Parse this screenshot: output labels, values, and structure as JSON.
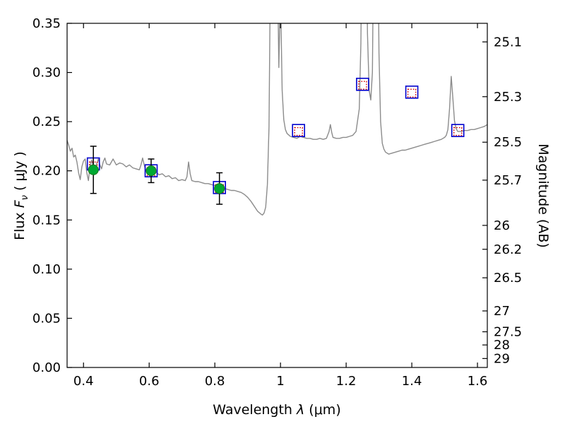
{
  "figure": {
    "background": "#ffffff",
    "axis_color": "#000000",
    "tick_label_size": 18
  },
  "chart_data": {
    "type": "line",
    "title": "",
    "grid": false,
    "legend": null,
    "xlim": [
      0.35,
      1.63
    ],
    "ylim": [
      0.0,
      0.35
    ],
    "labels": {
      "xlabel": {
        "prefix": "Wavelength  ",
        "math": "λ",
        "suffix": " (μm)"
      },
      "ylabel": {
        "prefix": "Flux  ",
        "math": "F",
        "sub": "ν",
        "suffix": "  ( μJy )"
      },
      "y2label": "Magnitude (AB)"
    },
    "x_ticks": [
      {
        "v": 0.4,
        "label": "0.4"
      },
      {
        "v": 0.6,
        "label": "0.6"
      },
      {
        "v": 0.8,
        "label": "0.8"
      },
      {
        "v": 1.0,
        "label": "1"
      },
      {
        "v": 1.2,
        "label": "1.2"
      },
      {
        "v": 1.4,
        "label": "1.4"
      },
      {
        "v": 1.6,
        "label": "1.6"
      }
    ],
    "y_ticks": [
      {
        "v": 0.0,
        "label": "0.00"
      },
      {
        "v": 0.05,
        "label": "0.05"
      },
      {
        "v": 0.1,
        "label": "0.10"
      },
      {
        "v": 0.15,
        "label": "0.15"
      },
      {
        "v": 0.2,
        "label": "0.20"
      },
      {
        "v": 0.25,
        "label": "0.25"
      },
      {
        "v": 0.3,
        "label": "0.30"
      },
      {
        "v": 0.35,
        "label": "0.35"
      }
    ],
    "y2_ticks": [
      {
        "label": "25.1",
        "flux": 0.3311
      },
      {
        "label": "25.3",
        "flux": 0.2754
      },
      {
        "label": "25.5",
        "flux": 0.2291
      },
      {
        "label": "25.7",
        "flux": 0.1905
      },
      {
        "label": "26",
        "flux": 0.1445
      },
      {
        "label": "26.2",
        "flux": 0.1202
      },
      {
        "label": "26.5",
        "flux": 0.0912
      },
      {
        "label": "27",
        "flux": 0.0575
      },
      {
        "label": "27.5",
        "flux": 0.0363
      },
      {
        "label": "28",
        "flux": 0.0229
      },
      {
        "label": "29",
        "flux": 0.0091
      }
    ],
    "series": [
      {
        "name": "model-spectrum",
        "kind": "line",
        "color": "#8c8c8c",
        "width": 1.4,
        "points": [
          [
            0.35,
            0.231
          ],
          [
            0.355,
            0.226
          ],
          [
            0.36,
            0.22
          ],
          [
            0.365,
            0.223
          ],
          [
            0.37,
            0.214
          ],
          [
            0.375,
            0.216
          ],
          [
            0.38,
            0.209
          ],
          [
            0.385,
            0.198
          ],
          [
            0.39,
            0.191
          ],
          [
            0.395,
            0.204
          ],
          [
            0.4,
            0.21
          ],
          [
            0.405,
            0.212
          ],
          [
            0.41,
            0.198
          ],
          [
            0.415,
            0.19
          ],
          [
            0.42,
            0.205
          ],
          [
            0.425,
            0.211
          ],
          [
            0.43,
            0.203
          ],
          [
            0.435,
            0.198
          ],
          [
            0.44,
            0.207
          ],
          [
            0.445,
            0.212
          ],
          [
            0.45,
            0.206
          ],
          [
            0.455,
            0.202
          ],
          [
            0.46,
            0.209
          ],
          [
            0.465,
            0.213
          ],
          [
            0.47,
            0.207
          ],
          [
            0.48,
            0.206
          ],
          [
            0.49,
            0.212
          ],
          [
            0.5,
            0.206
          ],
          [
            0.51,
            0.208
          ],
          [
            0.52,
            0.207
          ],
          [
            0.53,
            0.204
          ],
          [
            0.54,
            0.206
          ],
          [
            0.55,
            0.203
          ],
          [
            0.56,
            0.202
          ],
          [
            0.57,
            0.201
          ],
          [
            0.575,
            0.206
          ],
          [
            0.58,
            0.213
          ],
          [
            0.585,
            0.206
          ],
          [
            0.59,
            0.2
          ],
          [
            0.6,
            0.202
          ],
          [
            0.61,
            0.198
          ],
          [
            0.62,
            0.199
          ],
          [
            0.63,
            0.196
          ],
          [
            0.64,
            0.197
          ],
          [
            0.65,
            0.194
          ],
          [
            0.66,
            0.195
          ],
          [
            0.67,
            0.192
          ],
          [
            0.68,
            0.193
          ],
          [
            0.69,
            0.19
          ],
          [
            0.7,
            0.191
          ],
          [
            0.71,
            0.19
          ],
          [
            0.715,
            0.194
          ],
          [
            0.72,
            0.209
          ],
          [
            0.725,
            0.197
          ],
          [
            0.73,
            0.19
          ],
          [
            0.74,
            0.189
          ],
          [
            0.75,
            0.189
          ],
          [
            0.76,
            0.188
          ],
          [
            0.77,
            0.187
          ],
          [
            0.78,
            0.187
          ],
          [
            0.79,
            0.186
          ],
          [
            0.8,
            0.185
          ],
          [
            0.81,
            0.184
          ],
          [
            0.82,
            0.183
          ],
          [
            0.83,
            0.182
          ],
          [
            0.84,
            0.181
          ],
          [
            0.85,
            0.18
          ],
          [
            0.86,
            0.18
          ],
          [
            0.87,
            0.179
          ],
          [
            0.88,
            0.178
          ],
          [
            0.89,
            0.176
          ],
          [
            0.9,
            0.173
          ],
          [
            0.91,
            0.169
          ],
          [
            0.92,
            0.164
          ],
          [
            0.93,
            0.159
          ],
          [
            0.94,
            0.156
          ],
          [
            0.945,
            0.155
          ],
          [
            0.95,
            0.157
          ],
          [
            0.955,
            0.163
          ],
          [
            0.96,
            0.186
          ],
          [
            0.965,
            0.245
          ],
          [
            0.97,
            0.43
          ],
          [
            0.975,
            0.7
          ],
          [
            0.98,
            0.52
          ],
          [
            0.985,
            0.7
          ],
          [
            0.99,
            0.43
          ],
          [
            0.995,
            0.305
          ],
          [
            1.0,
            0.385
          ],
          [
            1.005,
            0.282
          ],
          [
            1.01,
            0.252
          ],
          [
            1.015,
            0.242
          ],
          [
            1.02,
            0.238
          ],
          [
            1.03,
            0.235
          ],
          [
            1.04,
            0.234
          ],
          [
            1.05,
            0.233
          ],
          [
            1.06,
            0.235
          ],
          [
            1.07,
            0.234
          ],
          [
            1.08,
            0.233
          ],
          [
            1.09,
            0.233
          ],
          [
            1.1,
            0.232
          ],
          [
            1.11,
            0.232
          ],
          [
            1.12,
            0.233
          ],
          [
            1.13,
            0.232
          ],
          [
            1.14,
            0.233
          ],
          [
            1.148,
            0.24
          ],
          [
            1.152,
            0.247
          ],
          [
            1.156,
            0.239
          ],
          [
            1.16,
            0.234
          ],
          [
            1.17,
            0.233
          ],
          [
            1.18,
            0.233
          ],
          [
            1.19,
            0.234
          ],
          [
            1.2,
            0.234
          ],
          [
            1.21,
            0.235
          ],
          [
            1.22,
            0.236
          ],
          [
            1.23,
            0.24
          ],
          [
            1.24,
            0.263
          ],
          [
            1.245,
            0.33
          ],
          [
            1.25,
            0.52
          ],
          [
            1.255,
            0.7
          ],
          [
            1.26,
            0.52
          ],
          [
            1.265,
            0.34
          ],
          [
            1.27,
            0.282
          ],
          [
            1.275,
            0.272
          ],
          [
            1.28,
            0.3
          ],
          [
            1.285,
            0.48
          ],
          [
            1.29,
            0.7
          ],
          [
            1.295,
            0.5
          ],
          [
            1.3,
            0.32
          ],
          [
            1.305,
            0.25
          ],
          [
            1.31,
            0.228
          ],
          [
            1.315,
            0.222
          ],
          [
            1.32,
            0.219
          ],
          [
            1.33,
            0.217
          ],
          [
            1.34,
            0.218
          ],
          [
            1.35,
            0.219
          ],
          [
            1.36,
            0.22
          ],
          [
            1.37,
            0.221
          ],
          [
            1.38,
            0.221
          ],
          [
            1.39,
            0.222
          ],
          [
            1.4,
            0.223
          ],
          [
            1.41,
            0.224
          ],
          [
            1.42,
            0.225
          ],
          [
            1.43,
            0.226
          ],
          [
            1.44,
            0.227
          ],
          [
            1.45,
            0.228
          ],
          [
            1.46,
            0.229
          ],
          [
            1.47,
            0.23
          ],
          [
            1.48,
            0.231
          ],
          [
            1.49,
            0.232
          ],
          [
            1.5,
            0.234
          ],
          [
            1.505,
            0.236
          ],
          [
            1.51,
            0.242
          ],
          [
            1.515,
            0.263
          ],
          [
            1.52,
            0.296
          ],
          [
            1.525,
            0.274
          ],
          [
            1.53,
            0.251
          ],
          [
            1.535,
            0.243
          ],
          [
            1.54,
            0.24
          ],
          [
            1.55,
            0.24
          ],
          [
            1.56,
            0.241
          ],
          [
            1.57,
            0.241
          ],
          [
            1.58,
            0.242
          ],
          [
            1.59,
            0.242
          ],
          [
            1.6,
            0.243
          ],
          [
            1.61,
            0.244
          ],
          [
            1.62,
            0.245
          ],
          [
            1.63,
            0.247
          ]
        ]
      },
      {
        "name": "model-photometry-blue-squares",
        "kind": "square",
        "color": "#0000cd",
        "size": 17,
        "linewidth": 1.6,
        "linestyle": "solid",
        "x": [
          0.43,
          0.606,
          0.814,
          1.055,
          1.25,
          1.4,
          1.54
        ],
        "y": [
          0.207,
          0.2,
          0.183,
          0.241,
          0.288,
          0.28,
          0.241
        ]
      },
      {
        "name": "model-photometry-red-squares",
        "kind": "square",
        "color": "#d40000",
        "size": 11,
        "linewidth": 1.4,
        "linestyle": "dotted",
        "x": [
          0.43,
          0.606,
          0.814,
          1.055,
          1.25,
          1.4,
          1.54
        ],
        "y": [
          0.205,
          0.199,
          0.182,
          0.24,
          0.287,
          0.279,
          0.24
        ]
      },
      {
        "name": "observed-photometry-green-circles",
        "kind": "errorbar-circle",
        "color": "#00a933",
        "edge": "#157a1e",
        "radius": 7,
        "x": [
          0.43,
          0.606,
          0.814
        ],
        "y": [
          0.201,
          0.2,
          0.182
        ],
        "yerr": [
          0.024,
          0.012,
          0.016
        ]
      }
    ]
  }
}
